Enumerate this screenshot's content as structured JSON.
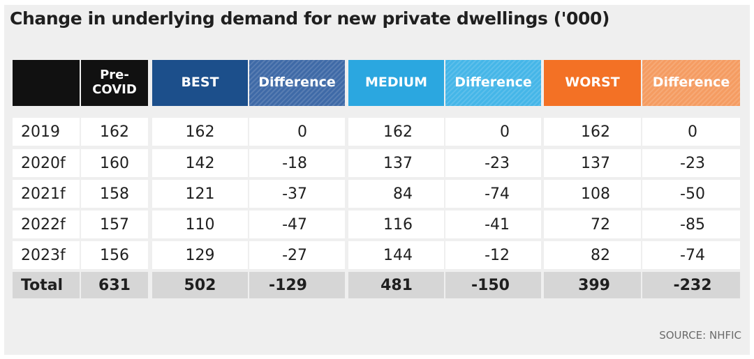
{
  "title": "Change in underlying demand for new private dwellings ('000)",
  "source": "SOURCE: NHFIC",
  "colors": {
    "pre_covid": "#111111",
    "best": "#1c4f8b",
    "best_diff": "#3f6aa7",
    "medium": "#2ba7e0",
    "medium_diff": "#45b6e8",
    "worst": "#f37125",
    "worst_diff": "#f59c62"
  },
  "header": [
    "",
    "Pre-\nCOVID",
    "BEST",
    "Difference",
    "MEDIUM",
    "Difference",
    "WORST",
    "Difference"
  ],
  "rows": [
    [
      "2019",
      "162",
      "162",
      "0",
      "162",
      "0",
      "162",
      "0"
    ],
    [
      "2020f",
      "160",
      "142",
      "-18",
      "137",
      "-23",
      "137",
      "-23"
    ],
    [
      "2021f",
      "158",
      "121",
      "-37",
      "84",
      "-74",
      "108",
      "-50"
    ],
    [
      "2022f",
      "157",
      "110",
      "-47",
      "116",
      "-41",
      "72",
      "-85"
    ],
    [
      "2023f",
      "156",
      "129",
      "-27",
      "144",
      "-12",
      "82",
      "-74"
    ]
  ],
  "total": [
    "Total",
    "631",
    "502",
    "-129",
    "481",
    "-150",
    "399",
    "-232"
  ],
  "chart_data": {
    "type": "table",
    "title": "Change in underlying demand for new private dwellings ('000)",
    "columns": [
      "",
      "Pre-COVID",
      "BEST",
      "Difference",
      "MEDIUM",
      "Difference",
      "WORST",
      "Difference"
    ],
    "categories": [
      "2019",
      "2020f",
      "2021f",
      "2022f",
      "2023f",
      "Total"
    ],
    "series": [
      {
        "name": "Pre-COVID",
        "values": [
          162,
          160,
          158,
          157,
          156,
          631
        ]
      },
      {
        "name": "BEST",
        "values": [
          162,
          142,
          121,
          110,
          129,
          502
        ]
      },
      {
        "name": "Difference",
        "values": [
          0,
          -18,
          -37,
          -47,
          -27,
          -129
        ]
      },
      {
        "name": "MEDIUM",
        "values": [
          162,
          137,
          84,
          116,
          144,
          481
        ]
      },
      {
        "name": "Difference",
        "values": [
          0,
          -23,
          -74,
          -41,
          -12,
          -150
        ]
      },
      {
        "name": "WORST",
        "values": [
          162,
          137,
          108,
          72,
          82,
          399
        ]
      },
      {
        "name": "Difference",
        "values": [
          0,
          -23,
          -50,
          -85,
          -74,
          -232
        ]
      }
    ],
    "source": "SOURCE: NHFIC"
  }
}
